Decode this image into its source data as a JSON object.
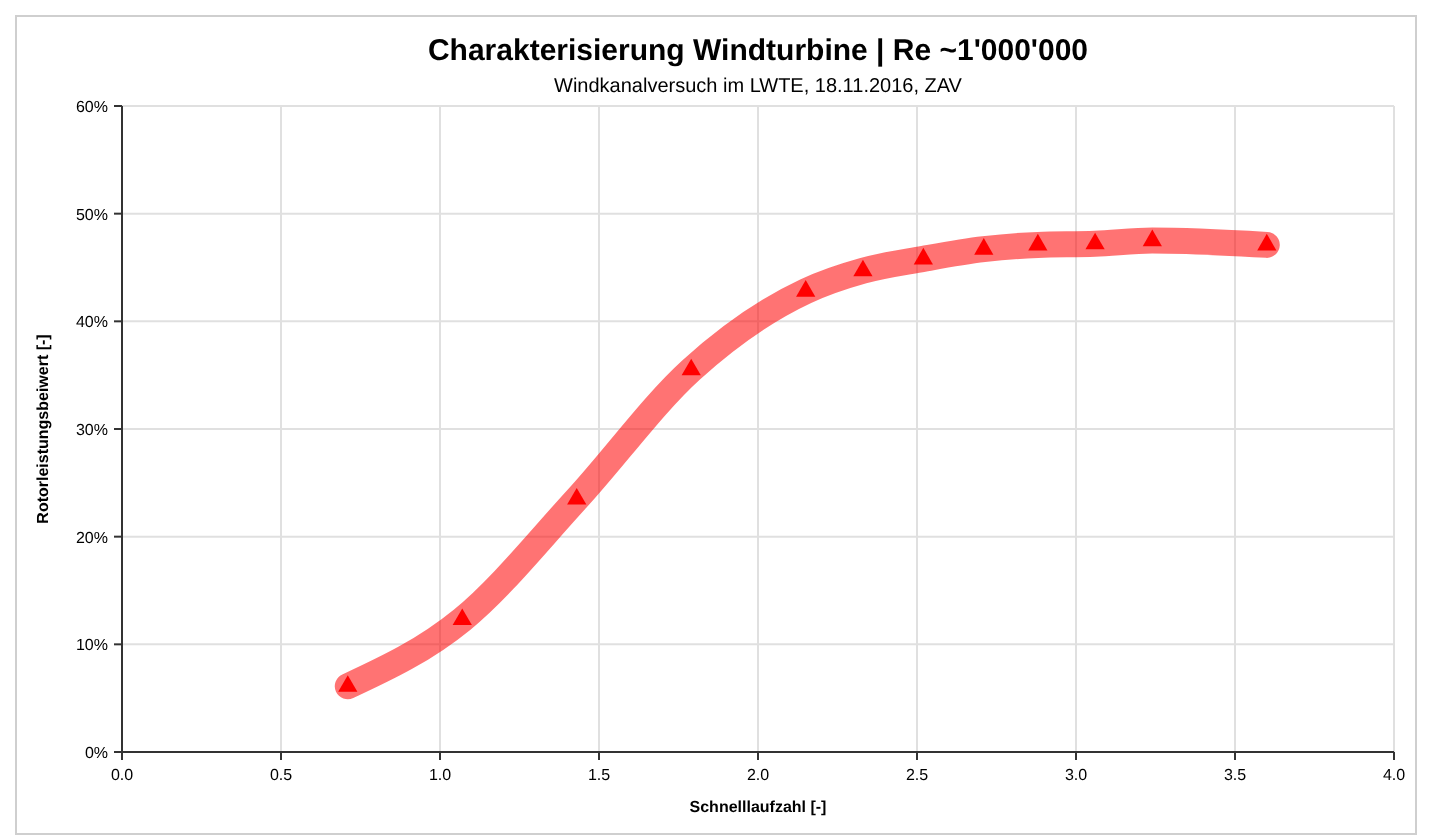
{
  "chart_data": {
    "type": "line",
    "title": "Charakterisierung Windturbine | Re ~1'000'000",
    "subtitle": "Windkanalversuch im LWTE, 18.11.2016, ZAV",
    "xlabel": "Schnelllaufzahl [-]",
    "ylabel": "Rotorleistungsbeiwert [-]",
    "x": [
      0.71,
      1.07,
      1.43,
      1.79,
      2.15,
      2.33,
      2.52,
      2.71,
      2.88,
      3.06,
      3.24,
      3.6
    ],
    "series": [
      {
        "color": "#ff0000",
        "values": [
          6.1,
          12.3,
          23.5,
          35.5,
          42.8,
          44.7,
          45.8,
          46.7,
          47.1,
          47.2,
          47.5,
          47.1
        ]
      }
    ],
    "xlim": [
      0,
      4
    ],
    "xticks": [
      {
        "value": 0,
        "label": "0.0"
      },
      0.5,
      {
        "value": 1,
        "label": "1.0"
      },
      1.5,
      {
        "value": 2,
        "label": "2.0"
      },
      2.5,
      {
        "value": 3,
        "label": "3.0"
      },
      3.5,
      {
        "value": 4,
        "label": "4.0"
      }
    ],
    "ylim": [
      0,
      60
    ],
    "yticks": [
      {
        "value": 0,
        "label": "0%"
      },
      {
        "value": 10,
        "label": "10%"
      },
      {
        "value": 20,
        "label": "20%"
      },
      {
        "value": 30,
        "label": "30%"
      },
      {
        "value": 40,
        "label": "40%"
      },
      {
        "value": 50,
        "label": "50%"
      },
      {
        "value": 60,
        "label": "60%"
      }
    ],
    "grid": true,
    "marker": "triangle",
    "line_style": "solid"
  }
}
